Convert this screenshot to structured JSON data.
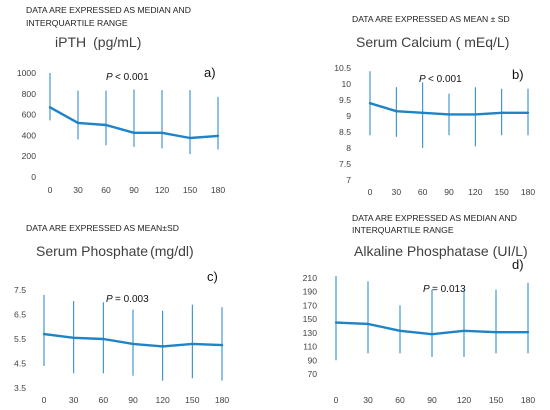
{
  "colors": {
    "line": "#1f83c6",
    "text": "#404040",
    "axis": "#d0d0d0"
  },
  "chart_data": [
    {
      "type": "line",
      "note_lines": [
        "DATA ARE EXPRESSED AS MEDIAN AND",
        "INTERQUARTILE RANGE"
      ],
      "title_parts": [
        "iPTH",
        "(pg/mL)"
      ],
      "panel_label": "a)",
      "p_text": "< 0.001",
      "x": [
        "0",
        "30",
        "60",
        "90",
        "120",
        "150",
        "180"
      ],
      "yticks": [
        "0",
        "200",
        "400",
        "600",
        "800",
        "1000"
      ],
      "ylim": [
        0,
        1000
      ],
      "series": [
        {
          "values": [
            670,
            520,
            500,
            425,
            425,
            375,
            395
          ],
          "low": [
            545,
            360,
            305,
            290,
            275,
            220,
            265
          ],
          "high": [
            1000,
            830,
            830,
            840,
            835,
            835,
            770
          ]
        }
      ],
      "grid": false
    },
    {
      "type": "line",
      "note_lines": [
        "DATA ARE EXPRESSED AS MEAN ± SD"
      ],
      "title_parts": [
        "Serum Calcium",
        "( mEq/L)"
      ],
      "panel_label": "b)",
      "p_text": "< 0.001",
      "x": [
        "0",
        "30",
        "60",
        "90",
        "120",
        "150",
        "180"
      ],
      "yticks": [
        "7",
        "7.5",
        "8",
        "8.5",
        "9",
        "9.5",
        "10",
        "10.5"
      ],
      "ylim": [
        7,
        10.5
      ],
      "series": [
        {
          "values": [
            9.4,
            9.15,
            9.1,
            9.05,
            9.05,
            9.1,
            9.1
          ],
          "low": [
            8.4,
            8.35,
            8.0,
            8.4,
            8.05,
            8.4,
            8.4
          ],
          "high": [
            10.4,
            9.9,
            10.05,
            9.7,
            9.9,
            9.85,
            9.85
          ]
        }
      ],
      "grid": false
    },
    {
      "type": "line",
      "note_lines": [
        "DATA ARE EXPRESSED AS MEAN±SD"
      ],
      "title_parts": [
        "Serum Phosphate",
        "(mg/dl)"
      ],
      "panel_label": "c)",
      "p_text": "= 0.003",
      "x": [
        "0",
        "30",
        "60",
        "90",
        "120",
        "150",
        "180"
      ],
      "yticks": [
        "3.5",
        "4.5",
        "5.5",
        "6.5",
        "7.5"
      ],
      "ylim": [
        3.5,
        7.5
      ],
      "series": [
        {
          "values": [
            5.7,
            5.55,
            5.5,
            5.3,
            5.2,
            5.3,
            5.25
          ],
          "low": [
            4.4,
            4.1,
            4.1,
            4.0,
            3.8,
            3.9,
            3.8
          ],
          "high": [
            7.3,
            7.05,
            7.0,
            6.7,
            6.65,
            6.9,
            6.8
          ]
        }
      ],
      "grid": false
    },
    {
      "type": "line",
      "note_lines": [
        "DATA ARE EXPRESSED AS MEDIAN AND",
        "INTERQUARTILE RANGE"
      ],
      "title_parts": [
        "Alkaline Phosphatase",
        "(UI/L)"
      ],
      "panel_label": "d)",
      "p_text": "= 0.013",
      "x": [
        "0",
        "30",
        "60",
        "90",
        "120",
        "150",
        "180"
      ],
      "yticks": [
        "70",
        "90",
        "110",
        "130",
        "150",
        "170",
        "190",
        "210"
      ],
      "ylim": [
        70,
        210
      ],
      "series": [
        {
          "values": [
            145,
            143,
            133,
            128,
            133,
            131,
            131
          ],
          "low": [
            90,
            100,
            100,
            95,
            95,
            100,
            100
          ],
          "high": [
            213,
            205,
            170,
            193,
            193,
            193,
            203
          ]
        }
      ],
      "grid": false
    }
  ]
}
